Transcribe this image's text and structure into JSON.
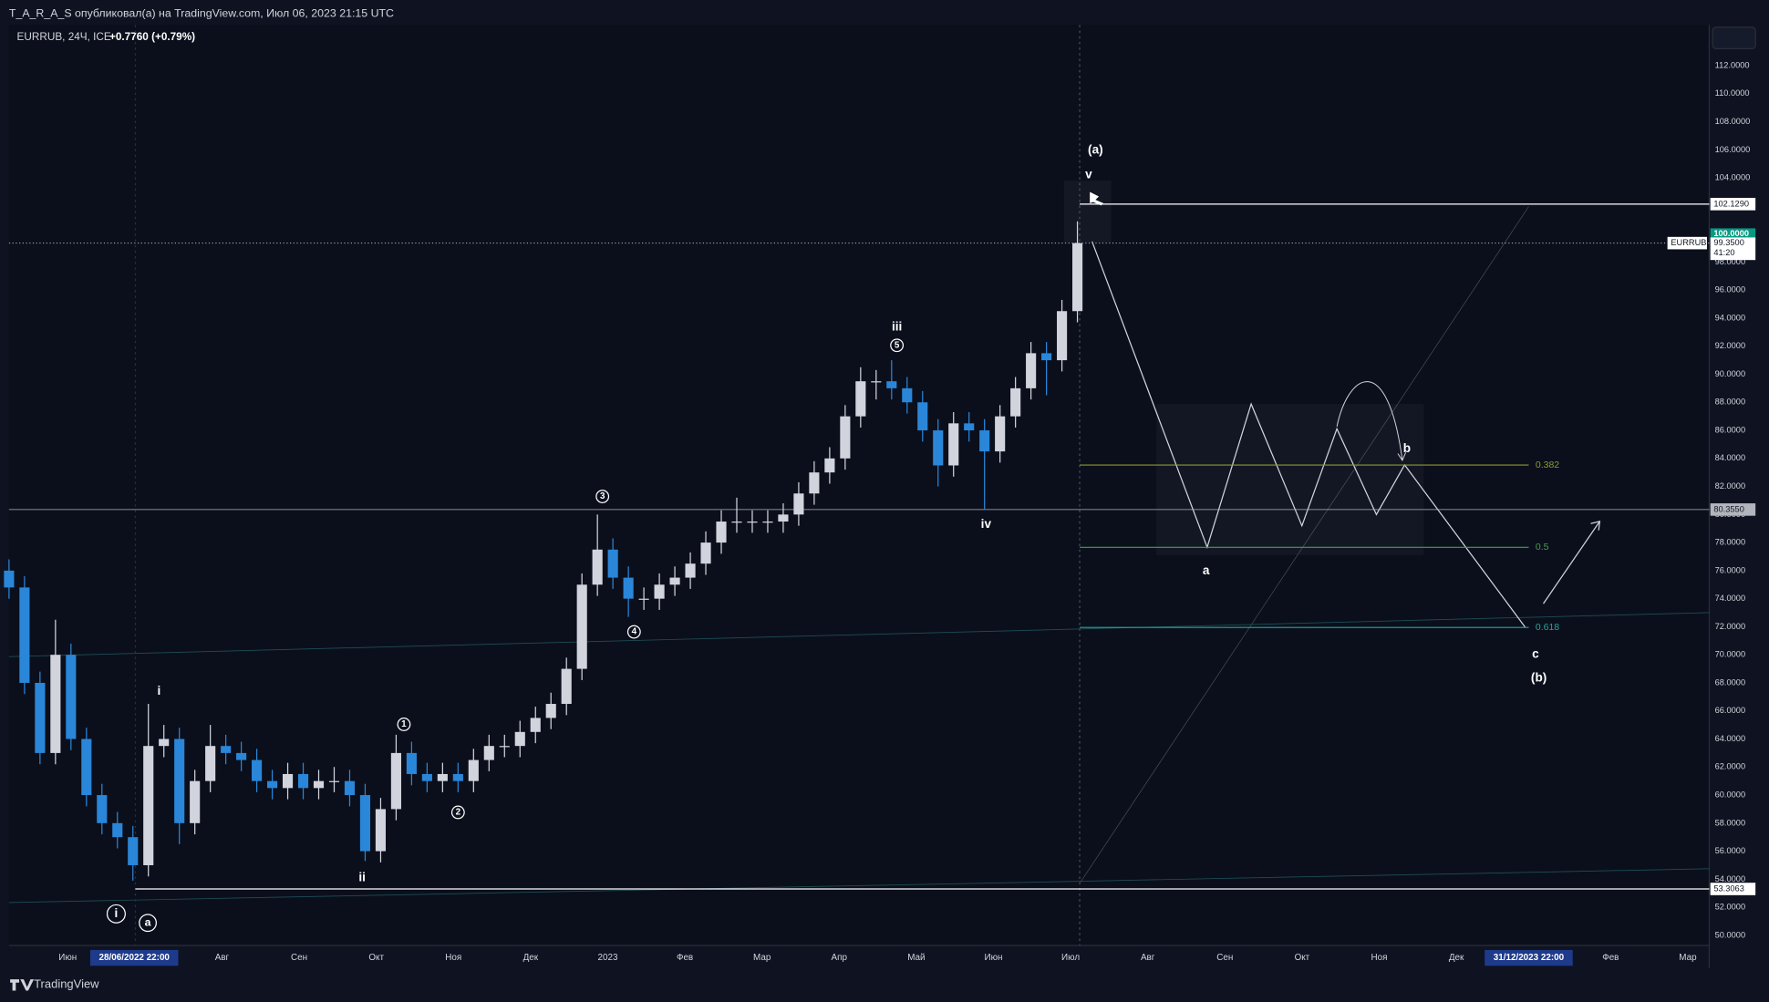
{
  "header": {
    "author_line": "T_A_R_A_S опубликовал(а) на TradingView.com, Июл 06, 2023 21:15 UTC"
  },
  "footer": {
    "brand": "TradingView"
  },
  "chart_data": {
    "type": "candlestick",
    "title": "EURRUB, 24Ч, ICE",
    "change": "+0.7760 (+0.79%)",
    "up_color": "#d1d4dc",
    "down_color": "#2a86d8",
    "open": [
      76,
      74.8,
      68,
      63,
      70,
      64,
      60,
      58,
      57,
      55,
      63.5,
      64,
      58,
      61,
      63.5,
      63,
      62.5,
      61,
      60.5,
      61.5,
      60.5,
      61,
      61,
      60,
      56,
      59,
      63,
      61.5,
      61,
      61.5,
      61,
      62.5,
      63.5,
      63.5,
      64.5,
      65.5,
      66.5,
      69,
      75,
      77.5,
      75.5,
      74,
      74,
      75,
      75.5,
      76.5,
      78,
      79.5,
      79.5,
      79.5,
      79.5,
      80,
      81.5,
      83,
      84,
      87,
      89.5,
      89.5,
      89,
      88,
      86,
      83.5,
      86.5,
      86,
      84.5,
      87,
      89,
      91.5,
      91,
      94.5
    ],
    "high": [
      76.8,
      75.6,
      68.8,
      72.5,
      70.8,
      64.8,
      60.8,
      58.8,
      57.8,
      66.5,
      65,
      64.8,
      61.8,
      65,
      64.3,
      63.8,
      63.3,
      61.8,
      62.3,
      62.3,
      61.8,
      62,
      61.8,
      60.8,
      59.8,
      64.3,
      63.8,
      62.3,
      62.3,
      62.3,
      63.3,
      64.3,
      64.3,
      65.3,
      66.3,
      67.3,
      69.8,
      75.8,
      80,
      78.3,
      76.3,
      74.8,
      75.8,
      76.3,
      77.3,
      78.8,
      80.3,
      81.2,
      80.3,
      80.3,
      80.8,
      82.3,
      83.8,
      84.8,
      87.8,
      90.5,
      90.3,
      91,
      89.8,
      88.8,
      86.8,
      87.3,
      87.3,
      86.8,
      87.8,
      89.8,
      92.3,
      92.3,
      95.3,
      100.9
    ],
    "low": [
      74,
      67.2,
      62.2,
      62.2,
      63.2,
      59.2,
      57.2,
      56.2,
      53.9,
      54.2,
      62.7,
      56.5,
      57.2,
      60.2,
      62.2,
      61.7,
      60.2,
      59.7,
      59.7,
      59.7,
      59.7,
      60.2,
      59.2,
      55.3,
      55.2,
      58.2,
      60.7,
      60.2,
      60.2,
      60.2,
      60.2,
      61.7,
      62.7,
      62.7,
      63.7,
      64.7,
      65.7,
      68.2,
      74.2,
      74.7,
      72.7,
      73.2,
      73.2,
      74.2,
      74.7,
      75.7,
      77.2,
      78.7,
      78.7,
      78.7,
      78.7,
      79.2,
      80.7,
      82.2,
      83.2,
      86.2,
      88.2,
      88.2,
      87.2,
      85.2,
      82,
      82.7,
      85.2,
      80.4,
      83.7,
      86.2,
      88.2,
      88.5,
      90.2,
      93.7
    ],
    "close": [
      74.8,
      68,
      63,
      70,
      64,
      60,
      58,
      57,
      55,
      63.5,
      64,
      58,
      61,
      63.5,
      63,
      62.5,
      61,
      60.5,
      61.5,
      60.5,
      61,
      61,
      60,
      56,
      59,
      63,
      61.5,
      61,
      61.5,
      61,
      62.5,
      63.5,
      63.5,
      64.5,
      65.5,
      66.5,
      69,
      75,
      77.5,
      75.5,
      74,
      74,
      75,
      75.5,
      76.5,
      78,
      79.5,
      79.5,
      79.5,
      79.5,
      80,
      81.5,
      83,
      84,
      87,
      89.5,
      89.5,
      89,
      88,
      86,
      83.5,
      86.5,
      86,
      84.5,
      87,
      89,
      91.5,
      91,
      94.5,
      99.35
    ],
    "ylim": [
      49.28,
      114.9
    ],
    "yticks": [
      {
        "value": 50,
        "label": "50.0000"
      },
      {
        "value": 52,
        "label": "52.0000"
      },
      {
        "value": 54,
        "label": "54.0000"
      },
      {
        "value": 56,
        "label": "56.0000"
      },
      {
        "value": 58,
        "label": "58.0000"
      },
      {
        "value": 60,
        "label": "60.0000"
      },
      {
        "value": 62,
        "label": "62.0000"
      },
      {
        "value": 64,
        "label": "64.0000"
      },
      {
        "value": 66,
        "label": "66.0000"
      },
      {
        "value": 68,
        "label": "68.0000"
      },
      {
        "value": 70,
        "label": "70.0000"
      },
      {
        "value": 72,
        "label": "72.0000"
      },
      {
        "value": 74,
        "label": "74.0000"
      },
      {
        "value": 76,
        "label": "76.0000"
      },
      {
        "value": 78,
        "label": "78.0000"
      },
      {
        "value": 80,
        "label": "80.0000"
      },
      {
        "value": 82,
        "label": "82.0000"
      },
      {
        "value": 84,
        "label": "84.0000"
      },
      {
        "value": 86,
        "label": "86.0000"
      },
      {
        "value": 88,
        "label": "88.0000"
      },
      {
        "value": 90,
        "label": "90.0000"
      },
      {
        "value": 92,
        "label": "92.0000"
      },
      {
        "value": 94,
        "label": "94.0000"
      },
      {
        "value": 96,
        "label": "96.0000"
      },
      {
        "value": 98,
        "label": "98.0000"
      },
      {
        "value": 102,
        "label": "102.0000"
      },
      {
        "value": 104,
        "label": "104.0000"
      },
      {
        "value": 106,
        "label": "106.0000"
      },
      {
        "value": 108,
        "label": "108.0000"
      },
      {
        "value": 110,
        "label": "110.0000"
      },
      {
        "value": 112,
        "label": "112.0000"
      }
    ],
    "categories": [
      "Июн",
      null,
      "Авг",
      "Сен",
      "Окт",
      "Ноя",
      "Дек",
      "2023",
      "Фев",
      "Мар",
      "Апр",
      "Май",
      "Июн",
      "Июл",
      "Авг",
      "Сен",
      "Окт",
      "Ноя",
      "Дек",
      null,
      "Фев",
      "Мар"
    ],
    "date_markers": [
      "28/06/2022 22:00",
      "31/12/2023 22:00"
    ],
    "price_lines": [
      {
        "value": 102.129,
        "label": "102.1290",
        "color": "#ffffff"
      },
      {
        "value": 80.355,
        "label": "80.3550",
        "color": "#b2b5be"
      },
      {
        "value": 53.3063,
        "label": "53.3063",
        "color": "#ffffff"
      }
    ],
    "level_label": {
      "value": 100,
      "label": "100.0000",
      "color": "#089981"
    },
    "last_price": {
      "value": 99.35,
      "label": "99.3500",
      "countdown": "41:20",
      "tag": "EURRUB"
    },
    "fib_levels": [
      {
        "ratio": 0.382,
        "price": 83.53,
        "color": "#8b9a2c"
      },
      {
        "ratio": 0.5,
        "price": 77.66,
        "color": "#43a047"
      },
      {
        "ratio": 0.618,
        "price": 71.95,
        "color": "#26a69a"
      }
    ],
    "wave_labels": [
      "(a)",
      "v",
      "iii",
      "5",
      "3",
      "iv",
      "4",
      "i",
      "1",
      "2",
      "ii",
      "i",
      "a",
      "a",
      "b",
      "c",
      "(b)"
    ]
  }
}
